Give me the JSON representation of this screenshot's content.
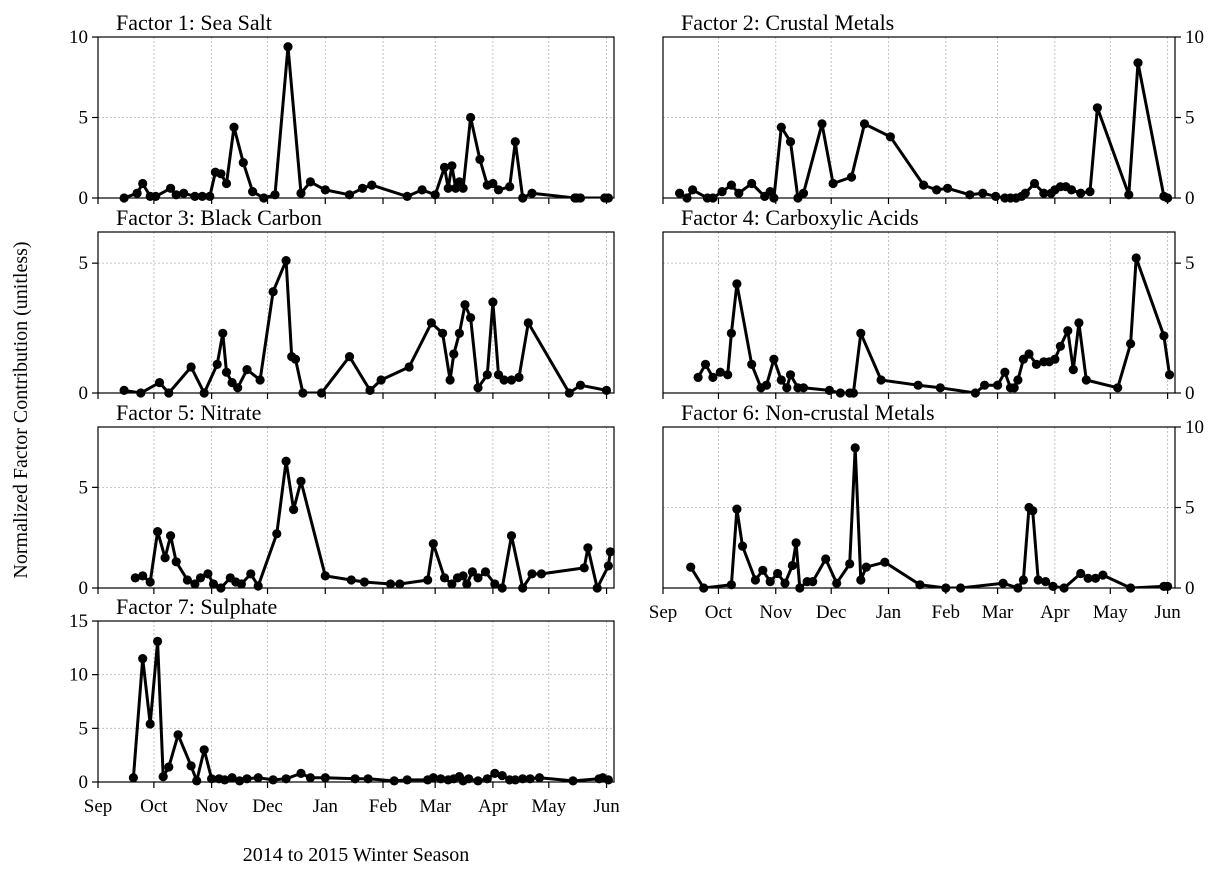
{
  "figure": {
    "ylabel": "Normalized Factor Contribution (unitless)",
    "xlabel": "2014 to 2015 Winter Season"
  },
  "chart_data": [
    {
      "type": "line",
      "title": "Factor 1: Sea Salt",
      "ylim": [
        0,
        10
      ],
      "yticks": [
        0,
        5,
        10
      ],
      "yaxis_side": "left",
      "xlim": [
        "2014-09-01",
        "2015-06-05"
      ],
      "xtick_labels": [
        "Sep",
        "Oct",
        "Nov",
        "Dec",
        "Jan",
        "Feb",
        "Mar",
        "Apr",
        "May",
        "Jun"
      ],
      "show_xtick_labels": false,
      "grid": true,
      "x": [
        "2014-09-15",
        "2014-09-22",
        "2014-09-25",
        "2014-09-29",
        "2014-10-02",
        "2014-10-10",
        "2014-10-13",
        "2014-10-17",
        "2014-10-23",
        "2014-10-27",
        "2014-10-31",
        "2014-11-03",
        "2014-11-06",
        "2014-11-09",
        "2014-11-13",
        "2014-11-18",
        "2014-11-23",
        "2014-11-29",
        "2014-12-05",
        "2014-12-12",
        "2014-12-19",
        "2014-12-24",
        "2015-01-01",
        "2015-01-14",
        "2015-01-21",
        "2015-01-26",
        "2015-02-14",
        "2015-02-22",
        "2015-03-01",
        "2015-03-06",
        "2015-03-08",
        "2015-03-10",
        "2015-03-12",
        "2015-03-14",
        "2015-03-16",
        "2015-03-20",
        "2015-03-25",
        "2015-03-29",
        "2015-04-01",
        "2015-04-04",
        "2015-04-10",
        "2015-04-13",
        "2015-04-17",
        "2015-04-22",
        "2015-05-15",
        "2015-05-16",
        "2015-05-18",
        "2015-05-31",
        "2015-06-02"
      ],
      "y": [
        0.0,
        0.3,
        0.9,
        0.1,
        0.1,
        0.6,
        0.2,
        0.3,
        0.1,
        0.1,
        0.1,
        1.6,
        1.5,
        0.9,
        4.4,
        2.2,
        0.4,
        0.0,
        0.2,
        9.4,
        0.3,
        1.0,
        0.5,
        0.2,
        0.6,
        0.8,
        0.1,
        0.5,
        0.2,
        1.9,
        0.6,
        2.0,
        0.6,
        1.0,
        0.6,
        5.0,
        2.4,
        0.8,
        0.9,
        0.5,
        0.7,
        3.5,
        0.0,
        0.3,
        0.0,
        0.0,
        0.0,
        0.0,
        0.0
      ]
    },
    {
      "type": "line",
      "title": "Factor 2: Crustal Metals",
      "ylim": [
        0,
        10
      ],
      "yticks": [
        0,
        5,
        10
      ],
      "yaxis_side": "right",
      "xlim": [
        "2014-09-01",
        "2015-06-05"
      ],
      "xtick_labels": [
        "Sep",
        "Oct",
        "Nov",
        "Dec",
        "Jan",
        "Feb",
        "Mar",
        "Apr",
        "May",
        "Jun"
      ],
      "show_xtick_labels": false,
      "grid": true,
      "x": [
        "2014-09-10",
        "2014-09-14",
        "2014-09-17",
        "2014-09-25",
        "2014-09-28",
        "2014-10-03",
        "2014-10-08",
        "2014-10-12",
        "2014-10-19",
        "2014-10-26",
        "2014-10-29",
        "2014-10-31",
        "2014-11-04",
        "2014-11-09",
        "2014-11-13",
        "2014-11-16",
        "2014-11-26",
        "2014-12-02",
        "2014-12-12",
        "2014-12-19",
        "2015-01-02",
        "2015-01-20",
        "2015-01-27",
        "2015-02-02",
        "2015-02-14",
        "2015-02-21",
        "2015-02-28",
        "2015-03-05",
        "2015-03-08",
        "2015-03-11",
        "2015-03-14",
        "2015-03-16",
        "2015-03-21",
        "2015-03-26",
        "2015-03-30",
        "2015-04-01",
        "2015-04-04",
        "2015-04-07",
        "2015-04-10",
        "2015-04-15",
        "2015-04-20",
        "2015-04-24",
        "2015-05-11",
        "2015-05-16",
        "2015-05-30",
        "2015-06-01"
      ],
      "y": [
        0.3,
        0.0,
        0.5,
        0.0,
        0.0,
        0.4,
        0.8,
        0.3,
        0.9,
        0.1,
        0.4,
        0.0,
        4.4,
        3.5,
        0.0,
        0.3,
        4.6,
        0.9,
        1.3,
        4.6,
        3.8,
        0.8,
        0.5,
        0.6,
        0.2,
        0.3,
        0.1,
        0.0,
        0.0,
        0.0,
        0.1,
        0.3,
        0.9,
        0.3,
        0.3,
        0.5,
        0.7,
        0.7,
        0.5,
        0.3,
        0.4,
        5.6,
        0.2,
        8.4,
        0.1,
        0.0
      ]
    },
    {
      "type": "line",
      "title": "Factor 3: Black Carbon",
      "ylim": [
        0,
        6.2
      ],
      "yticks": [
        0,
        5
      ],
      "yaxis_side": "left",
      "xlim": [
        "2014-09-01",
        "2015-06-05"
      ],
      "xtick_labels": [
        "Sep",
        "Oct",
        "Nov",
        "Dec",
        "Jan",
        "Feb",
        "Mar",
        "Apr",
        "May",
        "Jun"
      ],
      "show_xtick_labels": false,
      "grid": true,
      "x": [
        "2014-09-15",
        "2014-09-24",
        "2014-10-04",
        "2014-10-09",
        "2014-10-21",
        "2014-10-28",
        "2014-11-04",
        "2014-11-07",
        "2014-11-09",
        "2014-11-12",
        "2014-11-15",
        "2014-11-20",
        "2014-11-27",
        "2014-12-04",
        "2014-12-11",
        "2014-12-14",
        "2014-12-16",
        "2014-12-20",
        "2014-12-30",
        "2015-01-14",
        "2015-01-25",
        "2015-01-31",
        "2015-02-15",
        "2015-02-27",
        "2015-03-05",
        "2015-03-09",
        "2015-03-11",
        "2015-03-14",
        "2015-03-17",
        "2015-03-20",
        "2015-03-24",
        "2015-03-29",
        "2015-04-01",
        "2015-04-04",
        "2015-04-07",
        "2015-04-11",
        "2015-04-15",
        "2015-04-20",
        "2015-05-12",
        "2015-05-18",
        "2015-06-01"
      ],
      "y": [
        0.1,
        0.0,
        0.4,
        0.0,
        1.0,
        0.0,
        1.1,
        2.3,
        0.8,
        0.4,
        0.2,
        0.9,
        0.5,
        3.9,
        5.1,
        1.4,
        1.3,
        0.0,
        0.0,
        1.4,
        0.1,
        0.5,
        1.0,
        2.7,
        2.3,
        0.5,
        1.5,
        2.3,
        3.4,
        2.9,
        0.2,
        0.7,
        3.5,
        0.7,
        0.5,
        0.5,
        0.6,
        2.7,
        0.0,
        0.3,
        0.1
      ]
    },
    {
      "type": "line",
      "title": "Factor 4: Carboxylic Acids",
      "ylim": [
        0,
        6.2
      ],
      "yticks": [
        0,
        5
      ],
      "yaxis_side": "right",
      "xlim": [
        "2014-09-01",
        "2015-06-05"
      ],
      "xtick_labels": [
        "Sep",
        "Oct",
        "Nov",
        "Dec",
        "Jan",
        "Feb",
        "Mar",
        "Apr",
        "May",
        "Jun"
      ],
      "show_xtick_labels": false,
      "grid": true,
      "x": [
        "2014-09-20",
        "2014-09-24",
        "2014-09-28",
        "2014-10-02",
        "2014-10-06",
        "2014-10-08",
        "2014-10-11",
        "2014-10-19",
        "2014-10-24",
        "2014-10-27",
        "2014-10-31",
        "2014-11-04",
        "2014-11-07",
        "2014-11-09",
        "2014-11-13",
        "2014-11-16",
        "2014-11-30",
        "2014-12-06",
        "2014-12-11",
        "2014-12-13",
        "2014-12-17",
        "2014-12-28",
        "2015-01-17",
        "2015-01-29",
        "2015-02-17",
        "2015-02-22",
        "2015-03-01",
        "2015-03-05",
        "2015-03-08",
        "2015-03-10",
        "2015-03-12",
        "2015-03-15",
        "2015-03-18",
        "2015-03-22",
        "2015-03-26",
        "2015-03-29",
        "2015-04-01",
        "2015-04-04",
        "2015-04-08",
        "2015-04-11",
        "2015-04-14",
        "2015-04-18",
        "2015-05-05",
        "2015-05-12",
        "2015-05-15",
        "2015-05-30",
        "2015-06-02"
      ],
      "y": [
        0.6,
        1.1,
        0.6,
        0.8,
        0.7,
        2.3,
        4.2,
        1.1,
        0.2,
        0.3,
        1.3,
        0.5,
        0.2,
        0.7,
        0.2,
        0.2,
        0.1,
        0.0,
        0.0,
        0.0,
        2.3,
        0.5,
        0.3,
        0.2,
        0.0,
        0.3,
        0.3,
        0.8,
        0.2,
        0.2,
        0.5,
        1.3,
        1.5,
        1.1,
        1.2,
        1.2,
        1.3,
        1.8,
        2.4,
        0.9,
        2.7,
        0.5,
        0.2,
        1.9,
        5.2,
        2.2,
        0.7
      ]
    },
    {
      "type": "line",
      "title": "Factor 5: Nitrate",
      "ylim": [
        0,
        8
      ],
      "yticks": [
        0,
        5
      ],
      "yaxis_side": "left",
      "xlim": [
        "2014-09-01",
        "2015-06-05"
      ],
      "xtick_labels": [
        "Sep",
        "Oct",
        "Nov",
        "Dec",
        "Jan",
        "Feb",
        "Mar",
        "Apr",
        "May",
        "Jun"
      ],
      "show_xtick_labels": false,
      "grid": true,
      "x": [
        "2014-09-21",
        "2014-09-25",
        "2014-09-29",
        "2014-10-03",
        "2014-10-07",
        "2014-10-10",
        "2014-10-13",
        "2014-10-19",
        "2014-10-23",
        "2014-10-26",
        "2014-10-30",
        "2014-11-02",
        "2014-11-06",
        "2014-11-11",
        "2014-11-14",
        "2014-11-17",
        "2014-11-22",
        "2014-11-26",
        "2014-12-06",
        "2014-12-11",
        "2014-12-15",
        "2014-12-19",
        "2015-01-01",
        "2015-01-15",
        "2015-01-22",
        "2015-02-05",
        "2015-02-10",
        "2015-02-25",
        "2015-02-28",
        "2015-03-06",
        "2015-03-10",
        "2015-03-13",
        "2015-03-16",
        "2015-03-18",
        "2015-03-21",
        "2015-03-24",
        "2015-03-28",
        "2015-04-02",
        "2015-04-06",
        "2015-04-11",
        "2015-04-17",
        "2015-04-22",
        "2015-04-27",
        "2015-05-20",
        "2015-05-22",
        "2015-05-27",
        "2015-06-02",
        "2015-06-03"
      ],
      "y": [
        0.5,
        0.6,
        0.3,
        2.8,
        1.5,
        2.6,
        1.3,
        0.4,
        0.2,
        0.5,
        0.7,
        0.2,
        0.0,
        0.5,
        0.3,
        0.2,
        0.7,
        0.1,
        2.7,
        6.3,
        3.9,
        5.3,
        0.6,
        0.4,
        0.3,
        0.2,
        0.2,
        0.4,
        2.2,
        0.5,
        0.2,
        0.5,
        0.6,
        0.2,
        0.8,
        0.5,
        0.8,
        0.2,
        0.0,
        2.6,
        0.0,
        0.7,
        0.7,
        1.0,
        2.0,
        0.0,
        1.1,
        1.8
      ]
    },
    {
      "type": "line",
      "title": "Factor 6: Non-crustal Metals",
      "ylim": [
        0,
        10
      ],
      "yticks": [
        0,
        5,
        10
      ],
      "yaxis_side": "right",
      "xlim": [
        "2014-09-01",
        "2015-06-05"
      ],
      "xtick_labels": [
        "Sep",
        "Oct",
        "Nov",
        "Dec",
        "Jan",
        "Feb",
        "Mar",
        "Apr",
        "May",
        "Jun"
      ],
      "show_xtick_labels": true,
      "grid": true,
      "x": [
        "2014-09-16",
        "2014-09-23",
        "2014-10-08",
        "2014-10-11",
        "2014-10-14",
        "2014-10-21",
        "2014-10-25",
        "2014-10-29",
        "2014-11-02",
        "2014-11-06",
        "2014-11-10",
        "2014-11-12",
        "2014-11-14",
        "2014-11-18",
        "2014-11-21",
        "2014-11-28",
        "2014-12-04",
        "2014-12-11",
        "2014-12-14",
        "2014-12-17",
        "2014-12-20",
        "2014-12-30",
        "2015-01-18",
        "2015-02-01",
        "2015-02-09",
        "2015-03-04",
        "2015-03-12",
        "2015-03-15",
        "2015-03-18",
        "2015-03-20",
        "2015-03-23",
        "2015-03-27",
        "2015-03-31",
        "2015-04-06",
        "2015-04-15",
        "2015-04-19",
        "2015-04-23",
        "2015-04-27",
        "2015-05-12",
        "2015-05-30",
        "2015-06-01"
      ],
      "y": [
        1.3,
        0.0,
        0.2,
        4.9,
        2.6,
        0.5,
        1.1,
        0.4,
        0.9,
        0.3,
        1.4,
        2.8,
        0.0,
        0.4,
        0.4,
        1.8,
        0.3,
        1.5,
        8.7,
        0.5,
        1.3,
        1.6,
        0.2,
        0.0,
        0.0,
        0.3,
        0.0,
        0.5,
        5.0,
        4.8,
        0.5,
        0.4,
        0.1,
        0.0,
        0.9,
        0.6,
        0.6,
        0.8,
        0.0,
        0.1,
        0.1
      ]
    },
    {
      "type": "line",
      "title": "Factor 7: Sulphate",
      "ylim": [
        0,
        15
      ],
      "yticks": [
        0,
        5,
        10,
        15
      ],
      "yaxis_side": "left",
      "xlim": [
        "2014-09-01",
        "2015-06-05"
      ],
      "xtick_labels": [
        "Sep",
        "Oct",
        "Nov",
        "Dec",
        "Jan",
        "Feb",
        "Mar",
        "Apr",
        "May",
        "Jun"
      ],
      "show_xtick_labels": true,
      "grid": true,
      "x": [
        "2014-09-20",
        "2014-09-25",
        "2014-09-29",
        "2014-10-03",
        "2014-10-06",
        "2014-10-09",
        "2014-10-14",
        "2014-10-21",
        "2014-10-24",
        "2014-10-28",
        "2014-11-01",
        "2014-11-05",
        "2014-11-08",
        "2014-11-12",
        "2014-11-16",
        "2014-11-20",
        "2014-11-26",
        "2014-12-04",
        "2014-12-11",
        "2014-12-19",
        "2014-12-24",
        "2015-01-01",
        "2015-01-17",
        "2015-01-24",
        "2015-02-07",
        "2015-02-14",
        "2015-02-25",
        "2015-02-28",
        "2015-03-04",
        "2015-03-08",
        "2015-03-11",
        "2015-03-14",
        "2015-03-16",
        "2015-03-19",
        "2015-03-24",
        "2015-03-29",
        "2015-04-02",
        "2015-04-06",
        "2015-04-10",
        "2015-04-13",
        "2015-04-17",
        "2015-04-21",
        "2015-04-26",
        "2015-05-14",
        "2015-05-28",
        "2015-05-30",
        "2015-06-02"
      ],
      "y": [
        0.4,
        11.5,
        5.4,
        13.1,
        0.5,
        1.4,
        4.4,
        1.5,
        0.1,
        3.0,
        0.3,
        0.3,
        0.2,
        0.4,
        0.1,
        0.3,
        0.4,
        0.2,
        0.3,
        0.8,
        0.4,
        0.4,
        0.3,
        0.3,
        0.1,
        0.2,
        0.2,
        0.4,
        0.3,
        0.2,
        0.3,
        0.5,
        0.1,
        0.3,
        0.1,
        0.3,
        0.8,
        0.6,
        0.2,
        0.2,
        0.3,
        0.3,
        0.4,
        0.1,
        0.3,
        0.4,
        0.2
      ]
    }
  ]
}
